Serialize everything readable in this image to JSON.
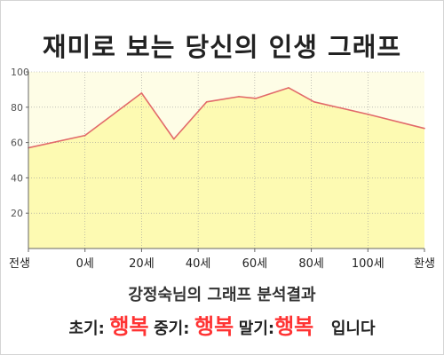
{
  "page": {
    "title": "재미로 보는 당신의 인생 그래프",
    "subtitle": "강정숙님의 그래프 분석결과"
  },
  "summary": {
    "early_label": "초기:",
    "early_value": "행복",
    "middle_label": "중기:",
    "middle_value": "행복",
    "late_label": "말기:",
    "late_value": "행복",
    "ending": "입니다"
  },
  "colors": {
    "plot_background": "#fefde6",
    "area_fill": "#fdfab2",
    "line": "#e26a6a",
    "value_highlight": "#ff3333"
  },
  "chart_data": {
    "type": "area",
    "title": "재미로 보는 당신의 인생 그래프",
    "x_tick_labels": [
      "전생",
      "0세",
      "20세",
      "40세",
      "60세",
      "80세",
      "100세",
      "환생"
    ],
    "ylim": [
      0,
      100
    ],
    "y_ticks": [
      20,
      40,
      60,
      80,
      100
    ],
    "grid": true,
    "legend": "none",
    "series": [
      {
        "points": [
          {
            "tick": 0,
            "value": 57
          },
          {
            "tick": 1,
            "value": 64
          },
          {
            "tick": 2,
            "value": 88
          },
          {
            "tick": 2.57,
            "value": 62
          },
          {
            "tick": 3.15,
            "value": 83
          },
          {
            "tick": 3.72,
            "value": 86
          },
          {
            "tick": 4.02,
            "value": 85
          },
          {
            "tick": 4.6,
            "value": 91
          },
          {
            "tick": 5.05,
            "value": 83
          },
          {
            "tick": 6,
            "value": 76
          },
          {
            "tick": 7,
            "value": 68
          }
        ]
      }
    ]
  }
}
